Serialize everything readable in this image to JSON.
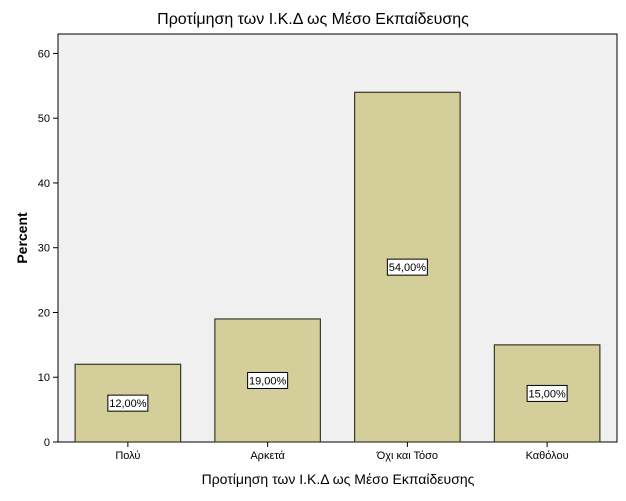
{
  "chart_data": {
    "type": "bar",
    "title": "Προτίμηση των Ι.Κ.Δ ως Μέσο Εκπαίδευσης",
    "xlabel": "Προτίμηση των Ι.Κ.Δ ως Μέσο Εκπαίδευσης",
    "ylabel": "Percent",
    "categories": [
      "Πολύ",
      "Αρκετά",
      "Όχι και Τόσο",
      "Καθόλου"
    ],
    "values": [
      12,
      19,
      54,
      15
    ],
    "data_labels": [
      "12,00%",
      "19,00%",
      "54,00%",
      "15,00%"
    ],
    "ylim": [
      0,
      63
    ],
    "yticks": [
      0,
      10,
      20,
      30,
      40,
      50,
      60
    ],
    "grid": false,
    "legend": "none",
    "colors": {
      "bar_fill": "#d3ce9a",
      "bar_stroke": "#3a3a2a",
      "plot_background": "#f0f0f0"
    }
  }
}
